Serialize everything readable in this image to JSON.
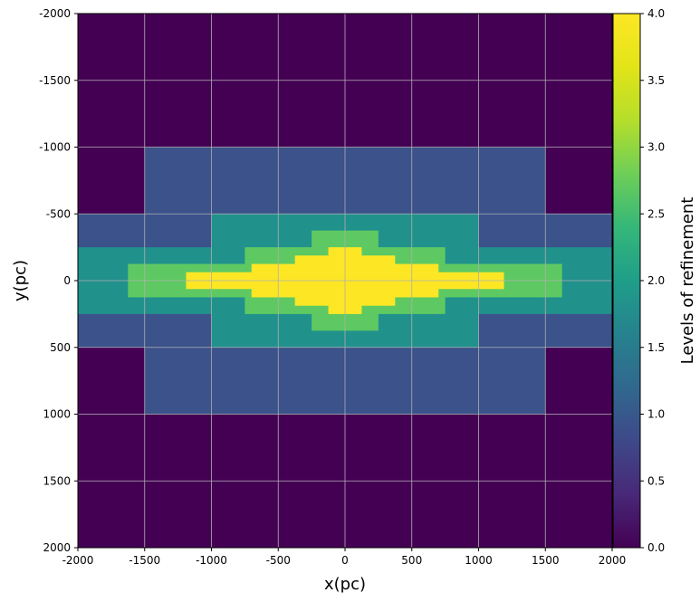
{
  "chart_data": {
    "type": "heatmap",
    "title": "",
    "xlabel": "x(pc)",
    "ylabel": "y(pc)",
    "colorbar_label": "Levels of refinement",
    "xlim": [
      -2000,
      2000
    ],
    "ylim": [
      -2000,
      2000
    ],
    "y_inverted": true,
    "grid": true,
    "colormap": "viridis",
    "vmin": 0.0,
    "vmax": 4.0,
    "x_ticks": [
      -2000,
      -1500,
      -1000,
      -500,
      0,
      500,
      1000,
      1500,
      2000
    ],
    "x_tick_labels": [
      "-2000",
      "-1500",
      "-1000",
      "-500",
      "0",
      "500",
      "1000",
      "1500",
      "2000"
    ],
    "y_ticks": [
      -2000,
      -1500,
      -1000,
      -500,
      0,
      500,
      1000,
      1500,
      2000
    ],
    "y_tick_labels": [
      "-2000",
      "-1500",
      "-1000",
      "-500",
      "0",
      "500",
      "1000",
      "1500",
      "2000"
    ],
    "colorbar_ticks": [
      0.0,
      0.5,
      1.0,
      1.5,
      2.0,
      2.5,
      3.0,
      3.5,
      4.0
    ],
    "colorbar_tick_labels": [
      "0.0",
      "0.5",
      "1.0",
      "1.5",
      "2.0",
      "2.5",
      "3.0",
      "3.5",
      "4.0"
    ],
    "background_level": 0,
    "regions": [
      {
        "level": 1,
        "x": [
          -1500,
          1500
        ],
        "y": [
          -1000,
          1000
        ]
      },
      {
        "level": 1,
        "x": [
          -2000,
          2000
        ],
        "y": [
          -500,
          500
        ]
      },
      {
        "level": 2,
        "x": [
          -1000,
          1000
        ],
        "y": [
          -500,
          500
        ]
      },
      {
        "level": 2,
        "x": [
          -2000,
          2000
        ],
        "y": [
          -250,
          250
        ]
      },
      {
        "level": 3,
        "x": [
          -750,
          750
        ],
        "y": [
          -250,
          250
        ]
      },
      {
        "level": 3,
        "x": [
          -250,
          250
        ],
        "y": [
          -375,
          375
        ]
      },
      {
        "level": 3,
        "x": [
          -1625,
          1625
        ],
        "y": [
          -125,
          125
        ]
      },
      {
        "level": 4,
        "x": [
          -125,
          125
        ],
        "y": [
          -250,
          250
        ]
      },
      {
        "level": 4,
        "x": [
          -375,
          375
        ],
        "y": [
          -188,
          188
        ]
      },
      {
        "level": 4,
        "x": [
          -700,
          700
        ],
        "y": [
          -125,
          125
        ]
      },
      {
        "level": 4,
        "x": [
          -1190,
          1190
        ],
        "y": [
          -63,
          63
        ]
      }
    ]
  }
}
